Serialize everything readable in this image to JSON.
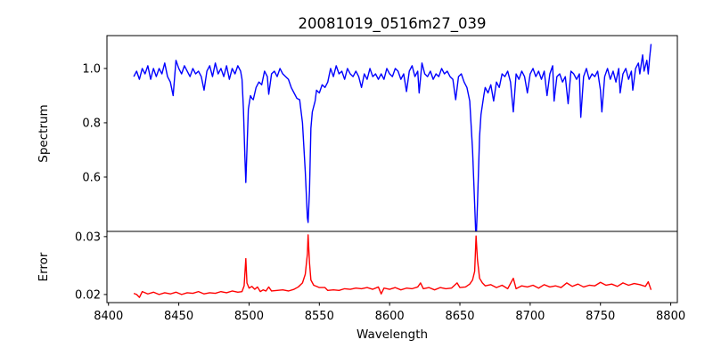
{
  "chart_data": [
    {
      "type": "line",
      "title": "20081019_0516m27_039",
      "xlabel": "",
      "ylabel": "Spectrum",
      "xlim": [
        8398.9,
        8804.7
      ],
      "ylim": [
        0.4,
        1.121
      ],
      "yticks": [
        0.6,
        0.8,
        1.0
      ],
      "ytick_labels": [
        "0.6",
        "0.8",
        "1.0"
      ],
      "grid": false,
      "color": "#0000ff",
      "series": [
        {
          "name": "Spectrum",
          "x": [
            8418,
            8420,
            8422,
            8424,
            8426,
            8428,
            8430,
            8432,
            8434,
            8436,
            8438,
            8440,
            8442,
            8444,
            8446,
            8448,
            8450,
            8452,
            8454,
            8456,
            8458,
            8460,
            8462,
            8464,
            8466,
            8468,
            8470,
            8472,
            8474,
            8476,
            8478,
            8480,
            8482,
            8484,
            8486,
            8488,
            8490,
            8492,
            8494,
            8495,
            8496,
            8497,
            8497.7,
            8498.5,
            8499.5,
            8501,
            8502,
            8503,
            8505,
            8507,
            8509,
            8511,
            8513,
            8514,
            8516,
            8518,
            8520,
            8522,
            8524,
            8526,
            8528,
            8530,
            8532,
            8534,
            8536,
            8538,
            8540,
            8541.5,
            8542,
            8543,
            8544,
            8545,
            8547,
            8548,
            8550,
            8552,
            8554,
            8556,
            8558,
            8560,
            8562,
            8564,
            8566,
            8568,
            8570,
            8572,
            8574,
            8576,
            8578,
            8580,
            8582,
            8584,
            8586,
            8588,
            8590,
            8592,
            8594,
            8596,
            8598,
            8600,
            8602,
            8604,
            8606,
            8608,
            8610,
            8612,
            8614,
            8616,
            8618,
            8620,
            8621,
            8623,
            8625,
            8627,
            8629,
            8631,
            8633,
            8635,
            8637,
            8639,
            8641,
            8643,
            8645,
            8647,
            8649,
            8651,
            8653,
            8655,
            8657,
            8659,
            8660.5,
            8661.5,
            8662.5,
            8664,
            8665,
            8667,
            8668,
            8670,
            8672,
            8674,
            8676,
            8678,
            8680,
            8682,
            8684,
            8686,
            8688,
            8690,
            8692,
            8694,
            8696,
            8698,
            8700,
            8702,
            8704,
            8706,
            8708,
            8710,
            8712,
            8714,
            8716,
            8717,
            8719,
            8721,
            8723,
            8725,
            8727,
            8729,
            8731,
            8733,
            8735,
            8736,
            8738,
            8740,
            8742,
            8744,
            8746,
            8748,
            8750,
            8751,
            8753,
            8755,
            8757,
            8759,
            8761,
            8763,
            8764,
            8766,
            8768,
            8770,
            8772,
            8773,
            8775,
            8777,
            8778,
            8780,
            8781,
            8783,
            8784,
            8785,
            8786
          ],
          "y": [
            0.97,
            0.99,
            0.96,
            1.0,
            0.98,
            1.01,
            0.96,
            1.0,
            0.97,
            1.0,
            0.98,
            1.02,
            0.97,
            0.95,
            0.9,
            1.03,
            1.0,
            0.98,
            1.01,
            0.99,
            0.97,
            1.0,
            0.98,
            0.99,
            0.97,
            0.92,
            0.99,
            1.01,
            0.97,
            1.02,
            0.98,
            1.0,
            0.97,
            1.01,
            0.96,
            1.0,
            0.98,
            1.01,
            0.99,
            0.96,
            0.85,
            0.68,
            0.58,
            0.7,
            0.85,
            0.9,
            0.89,
            0.885,
            0.93,
            0.95,
            0.94,
            0.99,
            0.97,
            0.905,
            0.98,
            0.99,
            0.97,
            1.0,
            0.98,
            0.97,
            0.96,
            0.93,
            0.91,
            0.89,
            0.885,
            0.8,
            0.62,
            0.45,
            0.433,
            0.55,
            0.78,
            0.84,
            0.88,
            0.92,
            0.91,
            0.94,
            0.93,
            0.95,
            1.0,
            0.97,
            1.01,
            0.98,
            0.99,
            0.96,
            1.0,
            0.98,
            0.97,
            0.99,
            0.97,
            0.93,
            0.98,
            0.96,
            1.0,
            0.97,
            0.98,
            0.96,
            0.98,
            0.96,
            1.0,
            0.98,
            0.97,
            1.0,
            0.99,
            0.96,
            0.98,
            0.915,
            0.99,
            1.01,
            0.97,
            0.99,
            0.91,
            1.02,
            0.98,
            0.97,
            0.99,
            0.96,
            0.98,
            0.97,
            1.0,
            0.98,
            0.99,
            0.97,
            0.96,
            0.885,
            0.97,
            0.98,
            0.95,
            0.93,
            0.88,
            0.7,
            0.5,
            0.36,
            0.5,
            0.75,
            0.83,
            0.9,
            0.93,
            0.91,
            0.94,
            0.88,
            0.95,
            0.93,
            0.98,
            0.97,
            0.99,
            0.95,
            0.84,
            0.98,
            0.96,
            0.99,
            0.97,
            0.91,
            0.98,
            1.0,
            0.97,
            0.99,
            0.96,
            0.99,
            0.9,
            0.98,
            1.01,
            0.88,
            0.97,
            0.98,
            0.95,
            0.97,
            0.87,
            0.99,
            0.98,
            0.96,
            0.98,
            0.82,
            0.97,
            1.0,
            0.96,
            0.98,
            0.97,
            0.99,
            0.92,
            0.84,
            0.97,
            1.0,
            0.96,
            0.99,
            0.95,
            1.0,
            0.91,
            0.98,
            1.0,
            0.96,
            0.99,
            0.92,
            1.0,
            1.02,
            0.98,
            1.05,
            0.99,
            1.03,
            0.98,
            1.04,
            1.09
          ]
        }
      ]
    },
    {
      "type": "line",
      "title": "",
      "xlabel": "Wavelength",
      "ylabel": "Error",
      "xlim": [
        8398.9,
        8804.7
      ],
      "ylim": [
        0.0186,
        0.0309
      ],
      "xticks": [
        8400,
        8450,
        8500,
        8550,
        8600,
        8650,
        8700,
        8750,
        8800
      ],
      "xtick_labels": [
        "8400",
        "8450",
        "8500",
        "8550",
        "8600",
        "8650",
        "8700",
        "8750",
        "8800"
      ],
      "yticks": [
        0.02,
        0.03
      ],
      "ytick_labels": [
        "0.02",
        "0.03"
      ],
      "grid": false,
      "color": "#ff0000",
      "series": [
        {
          "name": "Error",
          "x": [
            8418,
            8420,
            8422,
            8424,
            8428,
            8432,
            8436,
            8440,
            8444,
            8448,
            8452,
            8456,
            8460,
            8464,
            8468,
            8472,
            8476,
            8480,
            8484,
            8488,
            8492,
            8495,
            8496.5,
            8497.7,
            8498.5,
            8500,
            8502,
            8504,
            8506,
            8508,
            8510,
            8512,
            8514,
            8516,
            8520,
            8524,
            8528,
            8532,
            8535,
            8538,
            8540,
            8541.5,
            8542,
            8543,
            8544,
            8546,
            8548,
            8550,
            8554,
            8556,
            8560,
            8564,
            8568,
            8572,
            8576,
            8580,
            8584,
            8588,
            8592,
            8594,
            8596,
            8600,
            8604,
            8608,
            8612,
            8616,
            8620,
            8622,
            8624,
            8628,
            8632,
            8636,
            8640,
            8644,
            8648,
            8650,
            8654,
            8657,
            8659,
            8660.5,
            8661.5,
            8662.5,
            8664,
            8666,
            8668,
            8672,
            8676,
            8680,
            8684,
            8688,
            8690,
            8694,
            8698,
            8702,
            8706,
            8710,
            8714,
            8718,
            8722,
            8726,
            8730,
            8734,
            8738,
            8742,
            8746,
            8750,
            8754,
            8758,
            8762,
            8766,
            8770,
            8774,
            8778,
            8782,
            8784,
            8786
          ],
          "y": [
            0.0202,
            0.02,
            0.0195,
            0.0205,
            0.0201,
            0.0204,
            0.02,
            0.0203,
            0.0201,
            0.0204,
            0.02,
            0.0203,
            0.0202,
            0.0205,
            0.0201,
            0.0203,
            0.0202,
            0.0205,
            0.0203,
            0.0206,
            0.0204,
            0.0205,
            0.0215,
            0.0262,
            0.022,
            0.0211,
            0.0214,
            0.0209,
            0.0213,
            0.0205,
            0.0208,
            0.0206,
            0.0213,
            0.0206,
            0.0207,
            0.0208,
            0.0206,
            0.0209,
            0.0213,
            0.022,
            0.0235,
            0.027,
            0.0303,
            0.0255,
            0.0225,
            0.0216,
            0.0214,
            0.0212,
            0.0212,
            0.0207,
            0.0208,
            0.0207,
            0.021,
            0.0209,
            0.0211,
            0.021,
            0.0212,
            0.0209,
            0.0213,
            0.0201,
            0.0211,
            0.0209,
            0.0212,
            0.0208,
            0.0211,
            0.021,
            0.0213,
            0.022,
            0.021,
            0.0212,
            0.0208,
            0.0212,
            0.021,
            0.0211,
            0.022,
            0.0212,
            0.0213,
            0.0218,
            0.0225,
            0.024,
            0.0301,
            0.026,
            0.0228,
            0.022,
            0.0215,
            0.0217,
            0.0212,
            0.0216,
            0.021,
            0.0228,
            0.021,
            0.0215,
            0.0213,
            0.0216,
            0.0211,
            0.0217,
            0.0213,
            0.0215,
            0.0212,
            0.022,
            0.0214,
            0.0218,
            0.0213,
            0.0216,
            0.0215,
            0.0221,
            0.0216,
            0.0218,
            0.0214,
            0.022,
            0.0216,
            0.0219,
            0.0217,
            0.0214,
            0.0222,
            0.0208
          ]
        }
      ]
    }
  ]
}
